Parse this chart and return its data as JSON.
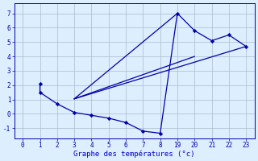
{
  "bg_color": "#ddeeff",
  "grid_color": "#aabbcc",
  "line_color": "#0000aa",
  "xlabel": "Graphe des températures (°c)",
  "xlabel_color": "#0000cc",
  "tick_color": "#0000aa",
  "ylim": [
    -1.7,
    7.7
  ],
  "yticks": [
    -1,
    0,
    1,
    2,
    3,
    4,
    5,
    6,
    7
  ],
  "xtick_labels": [
    "0",
    "1",
    "2",
    "3",
    "4",
    "5",
    "6",
    "7",
    "8",
    "19",
    "20",
    "21",
    "22",
    "23"
  ],
  "xtick_positions": [
    0,
    1,
    2,
    3,
    4,
    5,
    6,
    7,
    8,
    9,
    10,
    11,
    12,
    13
  ],
  "xlim": [
    -0.5,
    13.5
  ],
  "line1_x": [
    1,
    1,
    2,
    3,
    4,
    5,
    6,
    7,
    8,
    9,
    10,
    11,
    12,
    13
  ],
  "line1_y": [
    2.1,
    1.5,
    0.7,
    0.1,
    -0.1,
    -0.3,
    -0.6,
    -1.2,
    -1.35,
    7.0,
    5.8,
    5.1,
    5.5,
    4.7
  ],
  "line2_x": [
    3,
    9
  ],
  "line2_y": [
    1.05,
    7.0
  ],
  "line3_x": [
    3,
    13
  ],
  "line3_y": [
    1.05,
    4.7
  ],
  "line4_x": [
    3,
    10
  ],
  "line4_y": [
    1.05,
    4.0
  ],
  "marker_size": 2.5,
  "linewidth": 0.9
}
